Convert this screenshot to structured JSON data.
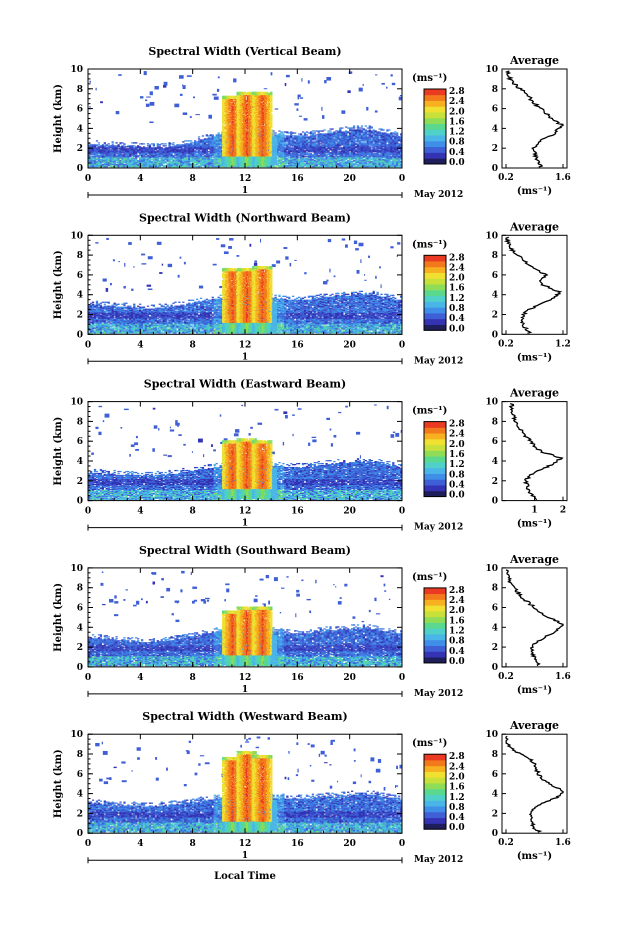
{
  "figure": {
    "xlabel": "Local Time",
    "date_label": "May 2012",
    "day_label": "1",
    "cbar_units": "(ms⁻¹)"
  },
  "colormap": [
    "#1e1e5a",
    "#3333b3",
    "#3f5fd6",
    "#3f8ee8",
    "#4ab6e8",
    "#4fd0c8",
    "#5ad88e",
    "#8fdc56",
    "#c8e03a",
    "#f0e030",
    "#f7b020",
    "#f27a1c",
    "#ea3a22"
  ],
  "chart_data": [
    {
      "type": "heatmap",
      "title": "Spectral Width (Vertical Beam)",
      "xlabel": "",
      "ylabel": "Height (km)",
      "xlim": [
        0,
        24
      ],
      "ylim": [
        0,
        10
      ],
      "xticks": [
        "0",
        "4",
        "8",
        "12",
        "16",
        "20",
        "0"
      ],
      "yticks": [
        "0",
        "2",
        "4",
        "6",
        "8",
        "10"
      ],
      "colorbar": {
        "min": 0.0,
        "max": 2.8,
        "ticks": [
          "2.8",
          "2.4",
          "2.0",
          "1.6",
          "1.2",
          "0.8",
          "0.4",
          "0.0"
        ]
      },
      "blh_km": [
        2.4,
        2.3,
        2.2,
        2.2,
        2.1,
        2.0,
        2.1,
        2.3,
        2.6,
        3.0,
        3.3,
        3.5,
        3.6,
        3.6,
        3.4,
        3.3,
        3.2,
        3.3,
        3.5,
        3.6,
        3.8,
        3.9,
        3.7,
        3.4,
        3.0
      ],
      "convection": [
        {
          "x": 11.0,
          "top": 7.2
        },
        {
          "x": 12.1,
          "top": 7.6
        },
        {
          "x": 13.3,
          "top": 7.6
        }
      ],
      "average": {
        "title": "Average",
        "xlabel": "(ms⁻¹)",
        "xlim": [
          0.2,
          1.6
        ],
        "xticks": [
          "0.2",
          "1.6"
        ],
        "yticks": [
          "0",
          "2",
          "4",
          "6",
          "8",
          "10"
        ],
        "height_km": [
          0.2,
          0.5,
          1.0,
          1.5,
          2.0,
          2.5,
          3.0,
          3.5,
          4.0,
          4.3,
          4.6,
          5.0,
          5.5,
          6.0,
          6.5,
          7.0,
          7.5,
          8.0,
          8.5,
          9.0,
          9.5
        ],
        "value": [
          1.05,
          1.0,
          0.95,
          0.9,
          0.88,
          0.95,
          1.15,
          1.4,
          1.5,
          1.6,
          1.45,
          1.3,
          1.2,
          1.05,
          0.9,
          0.8,
          0.75,
          0.55,
          0.4,
          0.3,
          0.25
        ]
      }
    },
    {
      "type": "heatmap",
      "title": "Spectral Width (Northward Beam)",
      "xlabel": "",
      "ylabel": "Height (km)",
      "xlim": [
        0,
        24
      ],
      "ylim": [
        0,
        10
      ],
      "xticks": [
        "0",
        "4",
        "8",
        "12",
        "16",
        "20",
        "0"
      ],
      "yticks": [
        "0",
        "2",
        "4",
        "6",
        "8",
        "10"
      ],
      "colorbar": {
        "min": 0.0,
        "max": 2.8,
        "ticks": [
          "2.8",
          "2.4",
          "2.0",
          "1.6",
          "1.2",
          "0.8",
          "0.4",
          "0.0"
        ]
      },
      "blh_km": [
        3.0,
        2.9,
        2.8,
        2.7,
        2.6,
        2.6,
        2.7,
        2.9,
        3.1,
        3.4,
        3.6,
        3.8,
        3.9,
        3.9,
        3.7,
        3.5,
        3.4,
        3.5,
        3.7,
        3.8,
        3.9,
        4.0,
        3.9,
        3.6,
        3.4
      ],
      "convection": [
        {
          "x": 11.0,
          "top": 6.6
        },
        {
          "x": 12.1,
          "top": 6.6
        },
        {
          "x": 13.3,
          "top": 6.8
        }
      ],
      "average": {
        "title": "Average",
        "xlabel": "(ms⁻¹)",
        "xlim": [
          0.2,
          1.2
        ],
        "xticks": [
          "0.2",
          "1.2"
        ],
        "yticks": [
          "0",
          "2",
          "4",
          "6",
          "8",
          "10"
        ],
        "height_km": [
          0.2,
          0.5,
          1.0,
          1.5,
          2.0,
          2.5,
          3.0,
          3.5,
          4.0,
          4.3,
          4.6,
          5.0,
          5.5,
          6.0,
          6.5,
          7.0,
          7.5,
          8.0,
          8.5,
          9.0,
          9.5
        ],
        "value": [
          0.6,
          0.55,
          0.5,
          0.48,
          0.5,
          0.6,
          0.8,
          1.0,
          1.1,
          1.15,
          1.0,
          0.85,
          0.8,
          0.9,
          0.75,
          0.6,
          0.5,
          0.4,
          0.3,
          0.25,
          0.22
        ]
      }
    },
    {
      "type": "heatmap",
      "title": "Spectral Width (Eastward Beam)",
      "xlabel": "",
      "ylabel": "Height (km)",
      "xlim": [
        0,
        24
      ],
      "ylim": [
        0,
        10
      ],
      "xticks": [
        "0",
        "4",
        "8",
        "12",
        "16",
        "20",
        "0"
      ],
      "yticks": [
        "0",
        "2",
        "4",
        "6",
        "8",
        "10"
      ],
      "colorbar": {
        "min": 0.0,
        "max": 2.8,
        "ticks": [
          "2.8",
          "2.4",
          "2.0",
          "1.6",
          "1.2",
          "0.8",
          "0.4",
          "0.0"
        ]
      },
      "blh_km": [
        2.8,
        2.7,
        2.6,
        2.6,
        2.5,
        2.5,
        2.6,
        2.8,
        3.0,
        3.2,
        3.4,
        3.6,
        3.7,
        3.7,
        3.5,
        3.4,
        3.3,
        3.4,
        3.6,
        3.7,
        3.8,
        3.9,
        3.8,
        3.5,
        3.2
      ],
      "convection": [
        {
          "x": 11.0,
          "top": 6.0
        },
        {
          "x": 12.1,
          "top": 6.2
        },
        {
          "x": 13.3,
          "top": 6.0
        }
      ],
      "average": {
        "title": "Average",
        "xlabel": "(ms⁻¹)",
        "xlim": [
          0.0,
          2.0
        ],
        "xticks": [
          "1",
          "2"
        ],
        "yticks": [
          "0",
          "2",
          "4",
          "6",
          "8",
          "10"
        ],
        "height_km": [
          0.2,
          0.5,
          1.0,
          1.5,
          2.0,
          2.5,
          3.0,
          3.5,
          4.0,
          4.3,
          4.6,
          5.0,
          5.5,
          6.0,
          6.5,
          7.0,
          7.5,
          8.0,
          8.5,
          9.0,
          9.5
        ],
        "value": [
          1.1,
          0.95,
          0.8,
          0.75,
          0.7,
          0.8,
          1.1,
          1.5,
          1.8,
          1.95,
          1.6,
          1.2,
          1.0,
          0.9,
          0.7,
          0.55,
          0.45,
          0.35,
          0.28,
          0.22,
          0.2
        ]
      }
    },
    {
      "type": "heatmap",
      "title": "Spectral Width (Southward Beam)",
      "xlabel": "",
      "ylabel": "Height (km)",
      "xlim": [
        0,
        24
      ],
      "ylim": [
        0,
        10
      ],
      "xticks": [
        "0",
        "4",
        "8",
        "12",
        "16",
        "20",
        "0"
      ],
      "yticks": [
        "0",
        "2",
        "4",
        "6",
        "8",
        "10"
      ],
      "colorbar": {
        "min": 0.0,
        "max": 2.8,
        "ticks": [
          "2.8",
          "2.4",
          "2.0",
          "1.6",
          "1.2",
          "0.8",
          "0.4",
          "0.0"
        ]
      },
      "blh_km": [
        2.9,
        2.8,
        2.7,
        2.6,
        2.5,
        2.5,
        2.6,
        2.8,
        3.0,
        3.3,
        3.6,
        3.8,
        3.9,
        3.8,
        3.6,
        3.4,
        3.3,
        3.4,
        3.6,
        3.7,
        3.8,
        3.9,
        3.7,
        3.5,
        3.2
      ],
      "convection": [
        {
          "x": 11.0,
          "top": 5.6
        },
        {
          "x": 12.1,
          "top": 6.0
        },
        {
          "x": 13.3,
          "top": 6.0
        }
      ],
      "average": {
        "title": "Average",
        "xlabel": "(ms⁻¹)",
        "xlim": [
          0.2,
          1.6
        ],
        "xticks": [
          "0.2",
          "1.6"
        ],
        "yticks": [
          "0",
          "2",
          "4",
          "6",
          "8",
          "10"
        ],
        "height_km": [
          0.2,
          0.5,
          1.0,
          1.5,
          2.0,
          2.5,
          3.0,
          3.5,
          4.0,
          4.3,
          4.6,
          5.0,
          5.5,
          6.0,
          6.5,
          7.0,
          7.5,
          8.0,
          8.5,
          9.0,
          9.5
        ],
        "value": [
          1.0,
          0.95,
          0.9,
          0.85,
          0.85,
          0.95,
          1.15,
          1.4,
          1.55,
          1.6,
          1.45,
          1.25,
          1.05,
          0.9,
          0.75,
          0.6,
          0.5,
          0.4,
          0.32,
          0.26,
          0.22
        ]
      }
    },
    {
      "type": "heatmap",
      "title": "Spectral Width (Westward Beam)",
      "xlabel": "Local Time",
      "ylabel": "Height (km)",
      "xlim": [
        0,
        24
      ],
      "ylim": [
        0,
        10
      ],
      "xticks": [
        "0",
        "4",
        "8",
        "12",
        "16",
        "20",
        "0"
      ],
      "yticks": [
        "0",
        "2",
        "4",
        "6",
        "8",
        "10"
      ],
      "colorbar": {
        "min": 0.0,
        "max": 2.8,
        "ticks": [
          "2.8",
          "2.4",
          "2.0",
          "1.6",
          "1.2",
          "0.8",
          "0.4",
          "0.0"
        ]
      },
      "blh_km": [
        3.0,
        2.9,
        2.8,
        2.8,
        2.7,
        2.7,
        2.8,
        2.9,
        3.1,
        3.3,
        3.5,
        3.7,
        3.8,
        3.8,
        3.6,
        3.5,
        3.4,
        3.5,
        3.6,
        3.7,
        3.8,
        3.9,
        3.8,
        3.5,
        3.3
      ],
      "convection": [
        {
          "x": 11.0,
          "top": 7.6
        },
        {
          "x": 12.1,
          "top": 8.2
        },
        {
          "x": 13.3,
          "top": 7.8
        }
      ],
      "average": {
        "title": "Average",
        "xlabel": "(ms⁻¹)",
        "xlim": [
          0.2,
          1.6
        ],
        "xticks": [
          "0.2",
          "1.6"
        ],
        "yticks": [
          "0",
          "2",
          "4",
          "6",
          "8",
          "10"
        ],
        "height_km": [
          0.2,
          0.5,
          1.0,
          1.5,
          2.0,
          2.5,
          3.0,
          3.5,
          4.0,
          4.3,
          4.6,
          5.0,
          5.5,
          6.0,
          6.5,
          7.0,
          7.5,
          8.0,
          8.5,
          9.0,
          9.5
        ],
        "value": [
          1.0,
          0.9,
          0.85,
          0.8,
          0.8,
          0.9,
          1.1,
          1.4,
          1.55,
          1.6,
          1.45,
          1.25,
          1.1,
          1.0,
          0.95,
          0.9,
          0.8,
          0.55,
          0.35,
          0.25,
          0.22
        ]
      }
    }
  ]
}
